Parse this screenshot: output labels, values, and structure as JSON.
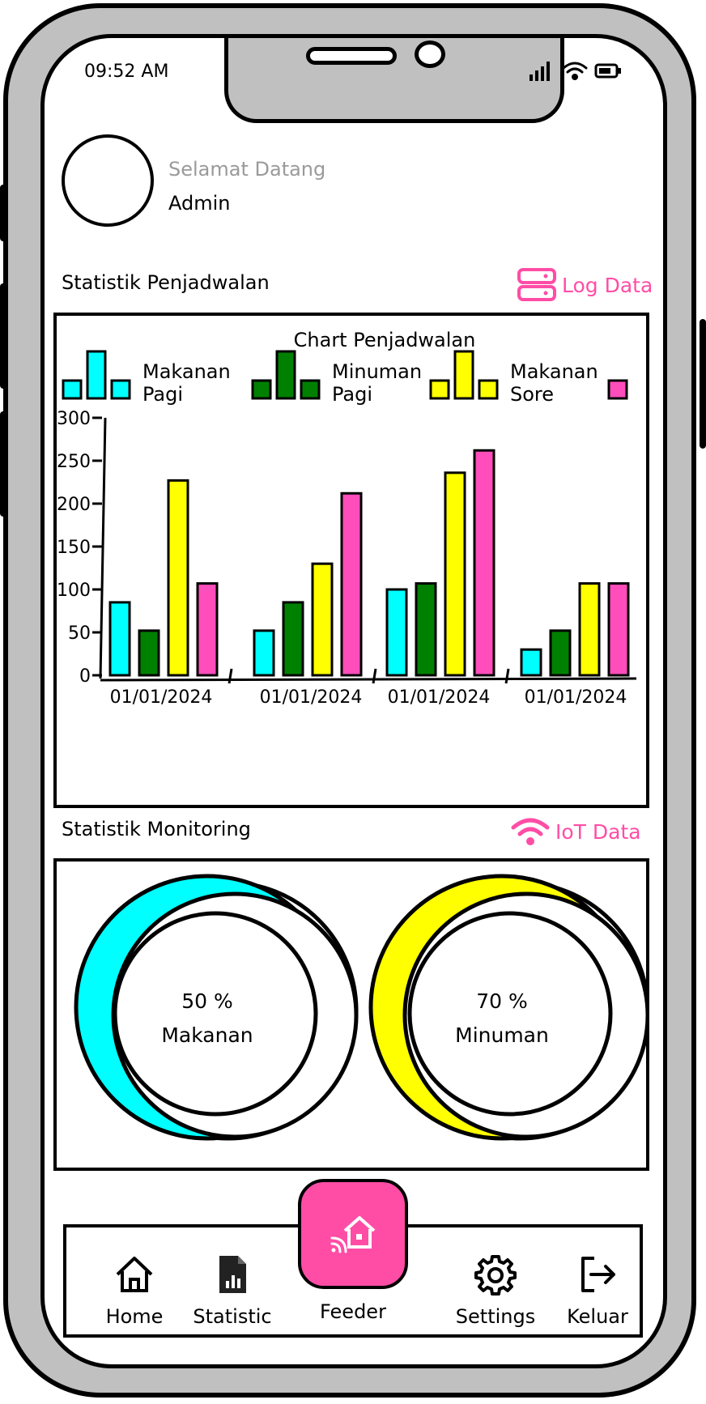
{
  "status_bar": {
    "time": "09:52 AM"
  },
  "profile": {
    "greeting": "Selamat Datang",
    "username": "Admin"
  },
  "schedule_section": {
    "title": "Statistik Penjadwalan",
    "link_label": "Log Data"
  },
  "chart_data": {
    "type": "bar",
    "title": "Chart Penjadwalan",
    "categories": [
      "01/01/2024",
      "01/01/2024",
      "01/01/2024",
      "01/01/2024"
    ],
    "series": [
      {
        "name": "Makanan Pagi",
        "color": "#00ffff",
        "values": [
          85,
          52,
          100,
          30
        ]
      },
      {
        "name": "Minuman Pagi",
        "color": "#008000",
        "values": [
          52,
          85,
          107,
          52
        ]
      },
      {
        "name": "Makanan Sore",
        "color": "#ffff00",
        "values": [
          227,
          130,
          236,
          107
        ]
      },
      {
        "name": "",
        "color": "#ff4dbb",
        "values": [
          107,
          212,
          262,
          107
        ]
      }
    ],
    "legend_lines": [
      [
        "Makanan",
        "Pagi"
      ],
      [
        "Minuman",
        "Pagi"
      ],
      [
        "Makanan",
        "Sore"
      ]
    ],
    "yticks": [
      0,
      50,
      100,
      150,
      200,
      250,
      300
    ],
    "ylim": [
      0,
      300
    ],
    "grid": false,
    "legend_position": "top"
  },
  "monitoring_section": {
    "title": "Statistik Monitoring",
    "link_label": "IoT Data"
  },
  "gauges": [
    {
      "value_label": "50 %",
      "name": "Makanan",
      "fraction": 0.5,
      "color": "#00ffff"
    },
    {
      "value_label": "70 %",
      "name": "Minuman",
      "fraction": 0.7,
      "color": "#ffff00"
    }
  ],
  "nav": {
    "home": "Home",
    "statistic": "Statistic",
    "feeder": "Feeder",
    "settings": "Settings",
    "logout": "Keluar"
  },
  "colors": {
    "accent": "#ff4da6",
    "frame": "#c0c0c0"
  }
}
